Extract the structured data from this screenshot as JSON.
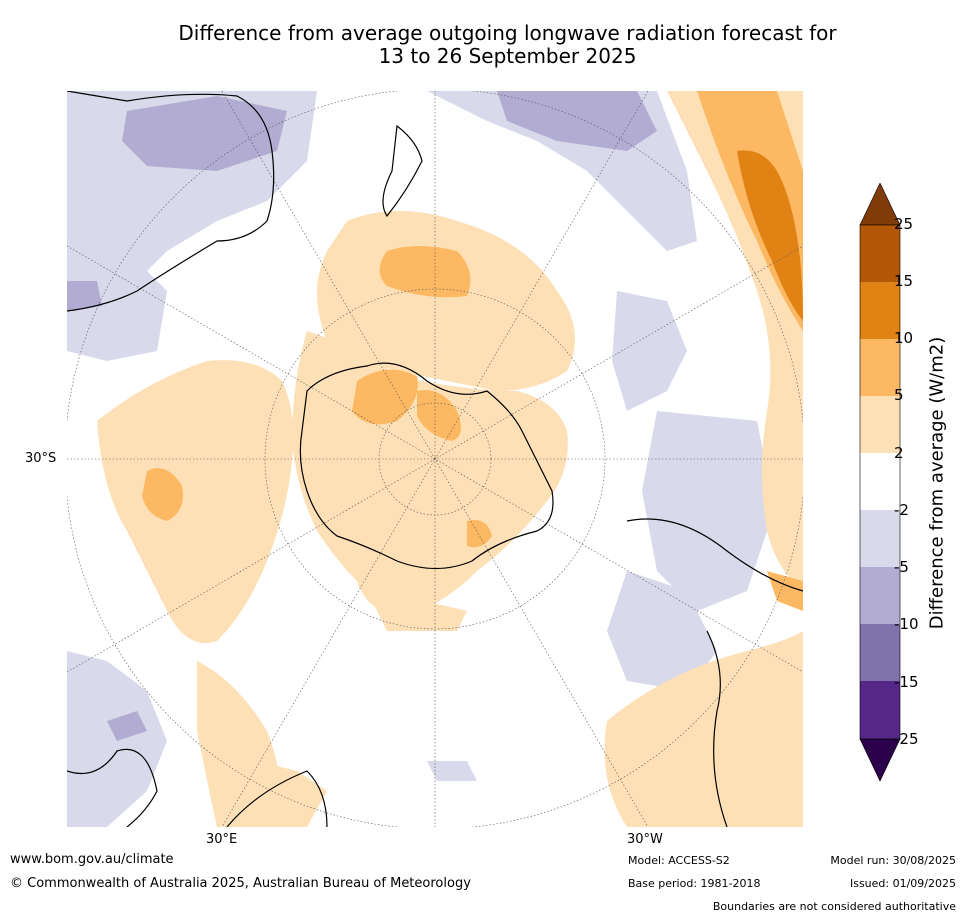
{
  "title": {
    "line1": "Difference from average outgoing longwave radiation forecast for",
    "line2": "13 to 26 September 2025"
  },
  "map": {
    "projection": "polar stereographic, South Pole",
    "grid_labels": {
      "lat_label": "30°S",
      "lon_label_east": "30°E",
      "lon_label_west": "30°W"
    }
  },
  "colorbar": {
    "title": "Difference from average (W/m2)",
    "ticks": [
      "25",
      "15",
      "10",
      "5",
      "2",
      "-2",
      "-5",
      "-10",
      "-15",
      "-25"
    ],
    "bands": [
      {
        "range": "> 25",
        "color": "#7f3b08"
      },
      {
        "range": "15 to 25",
        "color": "#b35806"
      },
      {
        "range": "10 to 15",
        "color": "#e08214"
      },
      {
        "range": "5 to 10",
        "color": "#fdb863"
      },
      {
        "range": "2 to 5",
        "color": "#fee0b6"
      },
      {
        "range": "-2 to 2",
        "color": "#ffffff"
      },
      {
        "range": "-5 to -2",
        "color": "#d8daeb"
      },
      {
        "range": "-10 to -5",
        "color": "#b2abd2"
      },
      {
        "range": "-15 to -10",
        "color": "#8073ac"
      },
      {
        "range": "-25 to -15",
        "color": "#542788"
      },
      {
        "range": "< -25",
        "color": "#2d004b"
      }
    ]
  },
  "footer": {
    "url": "www.bom.gov.au/climate",
    "copyright": "© Commonwealth of Australia 2025, Australian Bureau of Meteorology",
    "model": "Model: ACCESS-S2",
    "base_period": "Base period: 1981-2018",
    "model_run": "Model run: 30/08/2025",
    "issued": "Issued: 01/09/2025",
    "disclaimer": "Boundaries are not considered authoritative"
  }
}
